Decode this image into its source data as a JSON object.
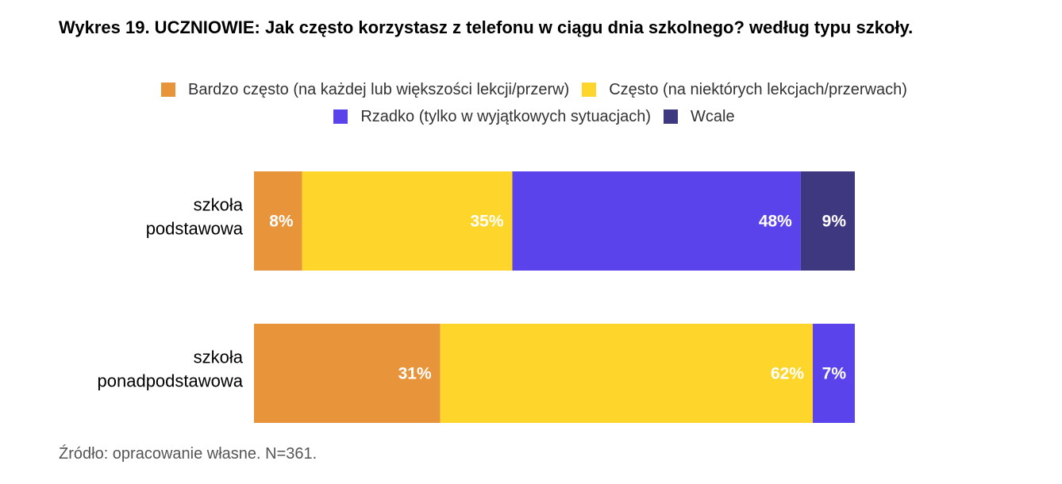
{
  "title": "Wykres 19. UCZNIOWIE: Jak często korzystasz z telefonu w ciągu dnia szkolnego? według typu szkoły.",
  "source": "Źródło: opracowanie własne. N=361.",
  "chart_data": {
    "type": "bar",
    "orientation": "horizontal",
    "stacked": true,
    "title": "Wykres 19. UCZNIOWIE: Jak często korzystasz z telefonu w ciągu dnia szkolnego? według typu szkoły.",
    "categories": [
      "szkoła\npodstawowa",
      "szkoła\nponadpodstawowa"
    ],
    "unit": "%",
    "series": [
      {
        "name": "Bardzo często (na każdej lub większości lekcji/przerw)",
        "color": "#E8943A",
        "values": [
          8,
          31
        ]
      },
      {
        "name": "Często (na niektórych lekcjach/przerwach)",
        "color": "#FED62B",
        "values": [
          35,
          62
        ]
      },
      {
        "name": "Rzadko (tylko w wyjątkowych sytuacjach)",
        "color": "#5A43EA",
        "values": [
          48,
          7
        ]
      },
      {
        "name": "Wcale",
        "color": "#3E3880",
        "values": [
          9,
          0
        ]
      }
    ],
    "data_labels": [
      [
        "8%",
        "35%",
        "48%",
        "9%"
      ],
      [
        "31%",
        "62%",
        "7%",
        ""
      ]
    ],
    "legend_position": "top",
    "grid": false
  }
}
